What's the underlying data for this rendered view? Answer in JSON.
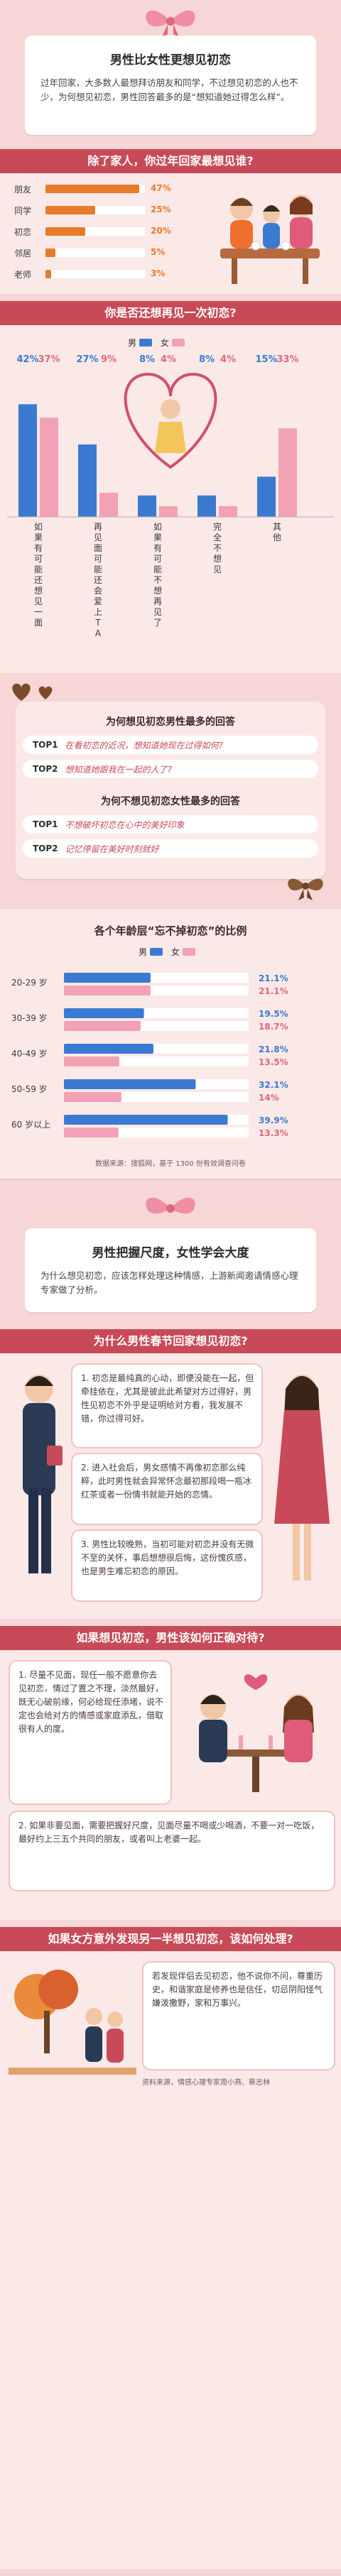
{
  "colors": {
    "male": "#3b7ad1",
    "female": "#f3a1b4",
    "orange": "#e77b2a",
    "accent": "#c84a58"
  },
  "intro": {
    "title": "男性比女性更想见初恋",
    "body": "过年回家，大多数人最想拜访朋友和同学，不过想见初恋的人也不少，为何想见初恋，男性回答最多的是“想知道她过得怎么样”。"
  },
  "q1": {
    "title": "除了家人，你过年回家最想见谁?",
    "rows": [
      {
        "label": "朋友",
        "value": 47,
        "text": "47%"
      },
      {
        "label": "同学",
        "value": 25,
        "text": "25%"
      },
      {
        "label": "初恋",
        "value": 20,
        "text": "20%"
      },
      {
        "label": "邻居",
        "value": 5,
        "text": "5%"
      },
      {
        "label": "老师",
        "value": 3,
        "text": "3%"
      }
    ]
  },
  "q2": {
    "title": "你是否还想再见一次初恋?",
    "legend_male": "男",
    "legend_female": "女",
    "categories": [
      {
        "label": "如果有可能还想见一面",
        "male": 42,
        "female": 37,
        "male_text": "42%",
        "female_text": "37%"
      },
      {
        "label": "再见面可能还会爱上TA",
        "male": 27,
        "female": 9,
        "male_text": "27%",
        "female_text": "9%"
      },
      {
        "label": "如果有可能不想再见了",
        "male": 8,
        "female": 4,
        "male_text": "8%",
        "female_text": "4%"
      },
      {
        "label": "完全不想见",
        "male": 8,
        "female": 4,
        "male_text": "8%",
        "female_text": "4%"
      },
      {
        "label": "其他",
        "male": 15,
        "female": 33,
        "male_text": "15%",
        "female_text": "33%"
      }
    ]
  },
  "reasons": {
    "see_title": "为何想见初恋男性最多的回答",
    "see_items": [
      {
        "tag": "TOP1",
        "text": "在看初恋的近况，想知道她现在过得如何?"
      },
      {
        "tag": "TOP2",
        "text": "想知道她跟我在一起的人了?"
      }
    ],
    "nosee_title": "为何不想见初恋女性最多的回答",
    "nosee_items": [
      {
        "tag": "TOP1",
        "text": "不想破坏初恋在心中的美好印象"
      },
      {
        "tag": "TOP2",
        "text": "记忆停留在美好时刻就好"
      }
    ]
  },
  "chart_data": {
    "type": "bar",
    "title": "各个年龄层“忘不掉初恋”的比例",
    "legend": [
      "男",
      "女"
    ],
    "categories": [
      "20-29 岁",
      "30-39 岁",
      "40-49 岁",
      "50-59 岁",
      "60 岁以上"
    ],
    "series": [
      {
        "name": "男",
        "values": [
          21.1,
          19.5,
          21.8,
          32.1,
          39.9
        ]
      },
      {
        "name": "女",
        "values": [
          21.1,
          18.7,
          13.5,
          14,
          13.3
        ]
      }
    ],
    "value_labels": [
      [
        "21.1%",
        "21.1%"
      ],
      [
        "19.5%",
        "18.7%"
      ],
      [
        "21.8%",
        "13.5%"
      ],
      [
        "32.1%",
        "14%"
      ],
      [
        "39.9%",
        "13.3%"
      ]
    ],
    "xlim": [
      0,
      45
    ],
    "source": "数据来源：搜狐网，基于 1300 份有效调查问卷"
  },
  "section2": {
    "title": "男性把握尺度，女性学会大度",
    "body": "为什么想见初恋，应该怎样处理这种情感，上游新闻邀请情感心理专家做了分析。"
  },
  "why": {
    "title": "为什么男性春节回家想见初恋?",
    "p1": "1. 初恋是最纯真的心动，即便没能在一起，但牵挂依在，尤其是彼此此希望对方过得好，男性见初恋不外乎是证明给对方看，我发展不错，你过得可好。",
    "p2": "2. 进入社会后，男女感情不再像初恋那么纯粹，此时男性就会异常怀念最初那段喝一瓶冰红茶或者一份情书就能开始的恋情。",
    "p3": "3. 男性比较晚熟，当初可能对初恋并没有无微不至的关怀，事后想想很后悔，这份愧疚感，也是男生难忘初恋的原因。"
  },
  "how": {
    "title": "如果想见初恋，男性该如何正确对待?",
    "p1": "1. 尽量不见面，现任一般不愿意你去见初恋，情过了置之不理，淡然最好，既无心破前缘，何必给现任添堵，说不定也会给对方的情感或家庭添乱，借取很有人的度。",
    "p2": "2. 如果非要见面，需要把握好尺度，见面尽量不喝或少喝酒，不要一对一吃饭，最好约上三五个共同的朋友，或者叫上老婆一起。"
  },
  "wife": {
    "title": "如果女方意外发现另一半想见初恋，该如何处理?",
    "body": "若发现伴侣去见初恋，他不说你不问，尊重历史，和谐家庭是修养也是信任，切忌阴阳怪气嫌泼撒野，家和万事兴。",
    "source": "资料来源，情感心理专家周小燕、蔡志林"
  }
}
